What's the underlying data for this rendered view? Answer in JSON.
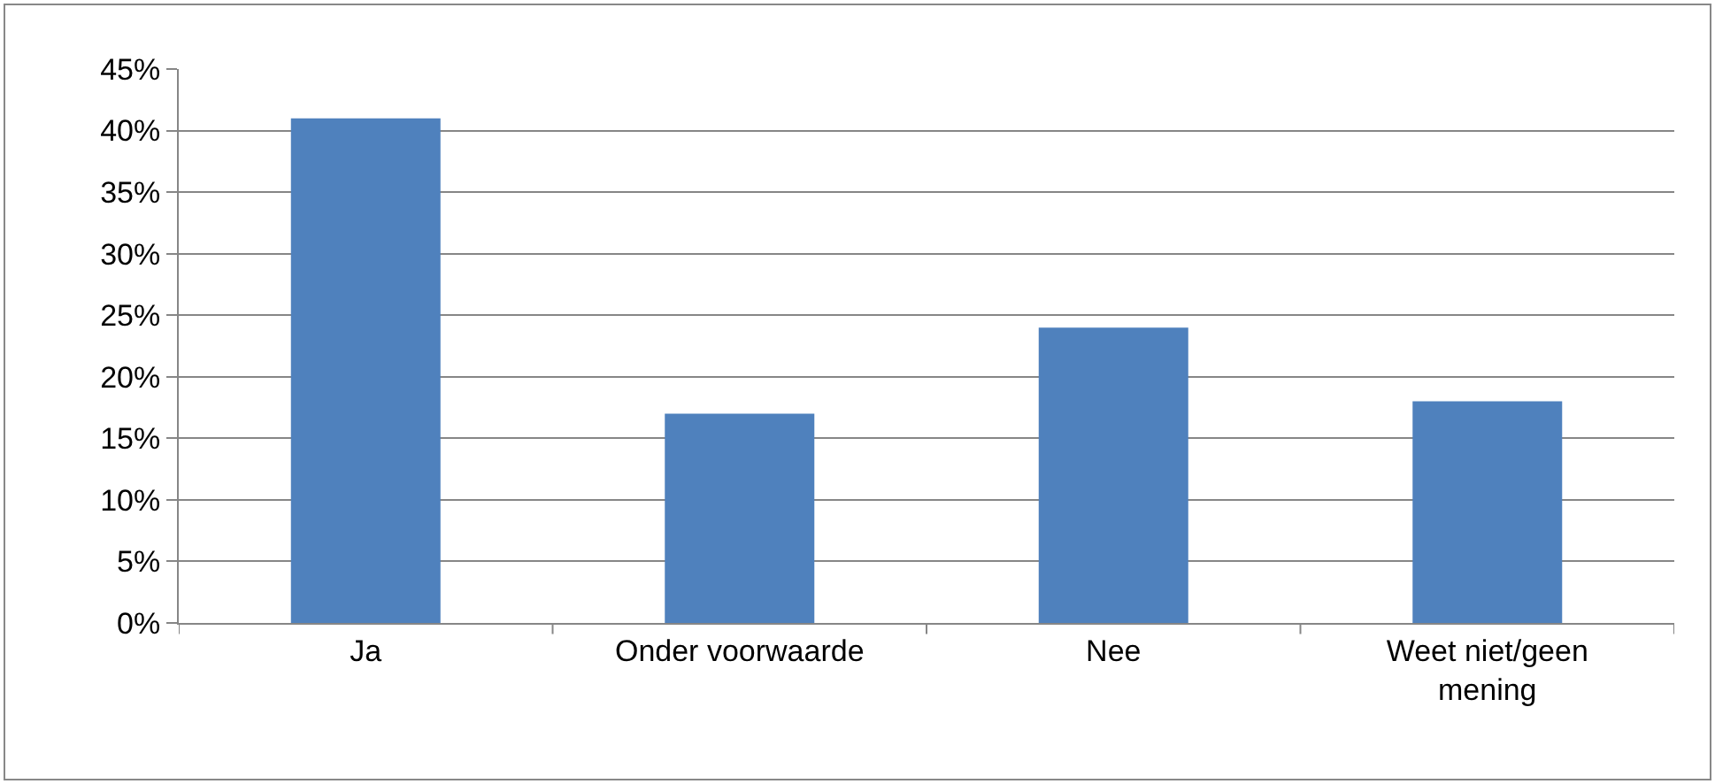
{
  "chart_data": {
    "type": "bar",
    "categories": [
      "Ja",
      "Onder voorwaarde",
      "Nee",
      "Weet niet/geen mening"
    ],
    "values": [
      41,
      17,
      24,
      18
    ],
    "color": "#4f81bd",
    "ylim": [
      0,
      45
    ],
    "yticks": [
      {
        "value": 0,
        "label": "0%"
      },
      {
        "value": 5,
        "label": "5%"
      },
      {
        "value": 10,
        "label": "10%"
      },
      {
        "value": 15,
        "label": "15%"
      },
      {
        "value": 20,
        "label": "20%"
      },
      {
        "value": 25,
        "label": "25%"
      },
      {
        "value": 30,
        "label": "30%"
      },
      {
        "value": 35,
        "label": "35%"
      },
      {
        "value": 40,
        "label": "40%"
      },
      {
        "value": 45,
        "label": "45%"
      }
    ],
    "grid": "y"
  }
}
